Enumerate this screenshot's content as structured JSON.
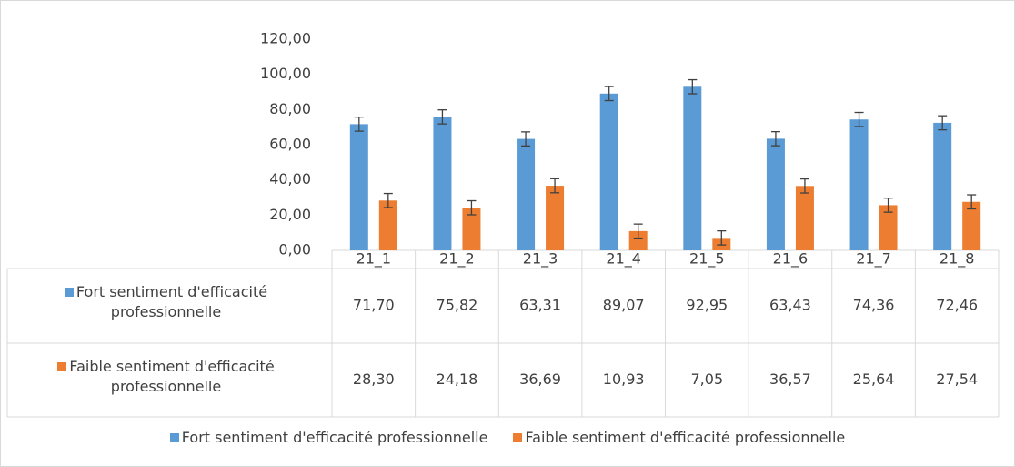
{
  "chart_data": {
    "type": "bar",
    "categories": [
      "21_1",
      "21_2",
      "21_3",
      "21_4",
      "21_5",
      "21_6",
      "21_7",
      "21_8"
    ],
    "series": [
      {
        "name": "Fort sentiment d'efficacité professionnelle",
        "color": "#5b9bd5",
        "values": [
          71.7,
          75.82,
          63.31,
          89.07,
          92.95,
          63.43,
          74.36,
          72.46
        ],
        "value_labels": [
          "71,70",
          "75,82",
          "63,31",
          "89,07",
          "92,95",
          "63,43",
          "74,36",
          "72,46"
        ],
        "errors": [
          4,
          4,
          4,
          4,
          4,
          4,
          4,
          4
        ]
      },
      {
        "name": "Faible sentiment d'efficacité professionnelle",
        "color": "#ed7d31",
        "values": [
          28.3,
          24.18,
          36.69,
          10.93,
          7.05,
          36.57,
          25.64,
          27.54
        ],
        "value_labels": [
          "28,30",
          "24,18",
          "36,69",
          "10,93",
          "7,05",
          "36,57",
          "25,64",
          "27,54"
        ],
        "errors": [
          4,
          4,
          4,
          4,
          4,
          4,
          4,
          4
        ]
      }
    ],
    "ylim": [
      0,
      120
    ],
    "yticks": [
      {
        "value": 0,
        "label": "0,00"
      },
      {
        "value": 20,
        "label": "20,00"
      },
      {
        "value": 40,
        "label": "40,00"
      },
      {
        "value": 60,
        "label": "60,00"
      },
      {
        "value": 80,
        "label": "80,00"
      },
      {
        "value": 100,
        "label": "100,00"
      },
      {
        "value": 120,
        "label": "120,00"
      }
    ],
    "grid": false,
    "legend": "bottom"
  }
}
